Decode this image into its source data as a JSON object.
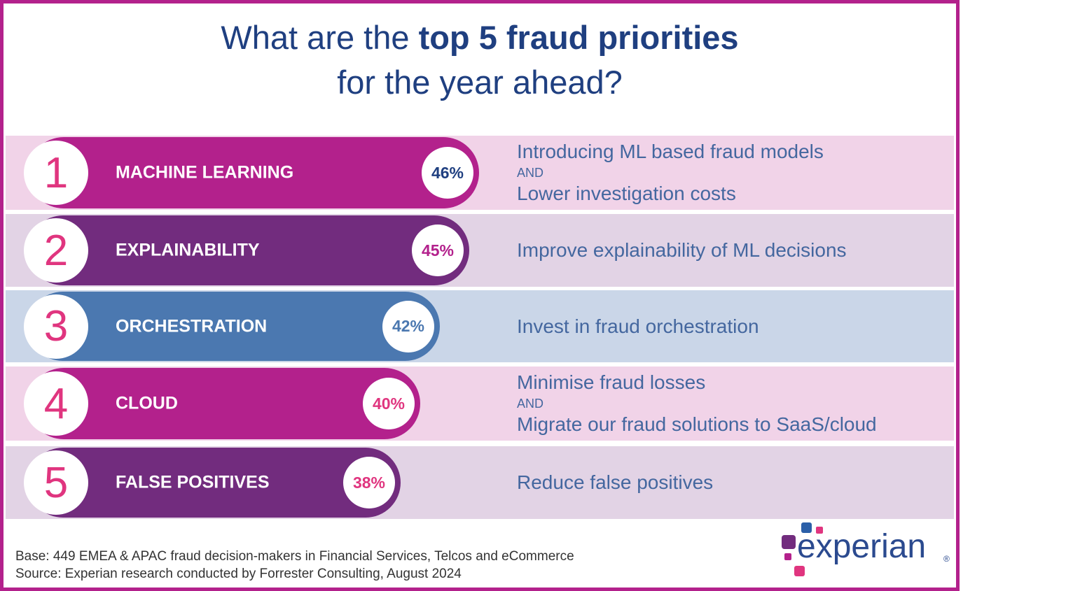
{
  "chart_data": {
    "type": "bar",
    "title_parts": [
      "What are the ",
      "top 5 fraud priorities",
      "for the year ahead?"
    ],
    "ranks": [
      1,
      2,
      3,
      4,
      5
    ],
    "categories": [
      "MACHINE LEARNING",
      "EXPLAINABILITY",
      "ORCHESTRATION",
      "CLOUD",
      "FALSE POSITIVES"
    ],
    "values": [
      46,
      45,
      42,
      40,
      38
    ],
    "value_labels": [
      "46%",
      "45%",
      "42%",
      "40%",
      "38%"
    ],
    "colors": [
      "#b3218c",
      "#722c7e",
      "#4b78b0",
      "#b3218c",
      "#722c7e"
    ],
    "row_colors": [
      "#f1d3e8",
      "#e2d3e5",
      "#cad6e8",
      "#f1d3e8",
      "#e2d3e5"
    ],
    "value_label_colors": [
      "#1f3f80",
      "#b3218c",
      "#4b78b0",
      "#e0357f",
      "#e0357f"
    ],
    "rank_color": "#e0357f",
    "details": [
      [
        "Introducing ML based fraud models",
        "AND",
        "Lower investigation costs"
      ],
      [
        "Improve explainability of ML decisions"
      ],
      [
        "Invest in fraud orchestration"
      ],
      [
        "Minimise fraud losses",
        "AND",
        "Migrate our fraud solutions to SaaS/cloud"
      ],
      [
        "Reduce false positives"
      ]
    ],
    "footnotes": [
      "Base: 449 EMEA & APAC fraud decision-makers in Financial Services, Telcos and eCommerce",
      "Source: Experian research conducted by Forrester Consulting, August 2024"
    ],
    "logo": "experian",
    "logo_mark": "®"
  }
}
